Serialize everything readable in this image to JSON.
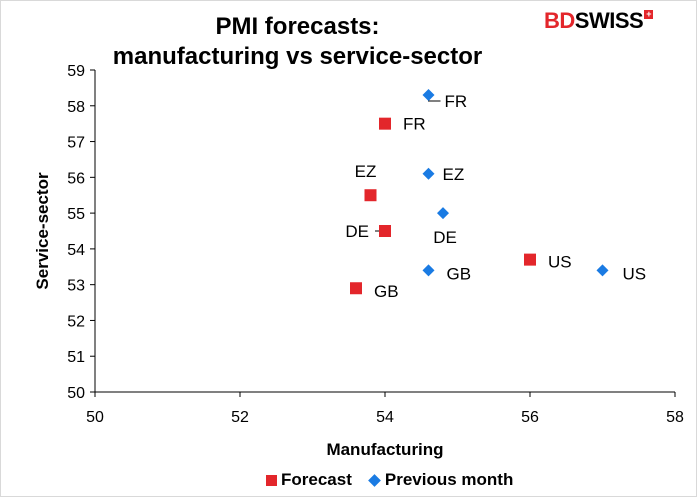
{
  "title": {
    "line1": "PMI forecasts:",
    "line2": "manufacturing vs service-sector"
  },
  "brand": {
    "part1": "BD",
    "part2": "SWISS",
    "mark": "+"
  },
  "colors": {
    "forecast": "#e3262b",
    "previous": "#1a7be3"
  },
  "chart_data": {
    "type": "scatter",
    "xlabel": "Manufacturing",
    "ylabel": "Service-sector",
    "xlim": [
      50,
      58
    ],
    "ylim": [
      50,
      59
    ],
    "xticks": [
      50,
      52,
      54,
      56,
      58
    ],
    "yticks": [
      50,
      51,
      52,
      53,
      54,
      55,
      56,
      57,
      58,
      59
    ],
    "grid": false,
    "legend_position": "bottom",
    "series": [
      {
        "name": "Forecast",
        "marker": "square",
        "color": "#e3262b",
        "points": [
          {
            "label": "FR",
            "x": 54.0,
            "y": 57.5
          },
          {
            "label": "EZ",
            "x": 53.8,
            "y": 55.5
          },
          {
            "label": "DE",
            "x": 54.0,
            "y": 54.5
          },
          {
            "label": "GB",
            "x": 53.6,
            "y": 52.9
          },
          {
            "label": "US",
            "x": 56.0,
            "y": 53.7
          }
        ]
      },
      {
        "name": "Previous month",
        "marker": "diamond",
        "color": "#1a7be3",
        "points": [
          {
            "label": "FR",
            "x": 54.6,
            "y": 58.3
          },
          {
            "label": "EZ",
            "x": 54.6,
            "y": 56.1
          },
          {
            "label": "DE",
            "x": 54.8,
            "y": 55.0
          },
          {
            "label": "GB",
            "x": 54.6,
            "y": 53.4
          },
          {
            "label": "US",
            "x": 57.0,
            "y": 53.4
          }
        ]
      }
    ]
  }
}
